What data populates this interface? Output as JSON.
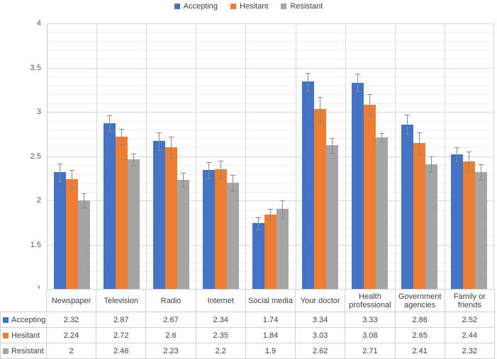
{
  "chart_data": {
    "type": "bar",
    "title": "",
    "xlabel": "",
    "ylabel": "",
    "ylim": [
      1,
      4
    ],
    "y_major_step": 0.5,
    "y_minor_step": 0.1,
    "y_tick_labels": [
      "4",
      "3.5",
      "3",
      "2.5",
      "2",
      "1.5",
      "1"
    ],
    "grid": true,
    "legend_position": "top",
    "has_data_table": true,
    "has_error_bars": true,
    "categories": [
      "Newspaper",
      "Television",
      "Radio",
      "Internet",
      "Social media",
      "Your doctor",
      "Health professional",
      "Government agencies",
      "Family or friends"
    ],
    "series": [
      {
        "name": "Accepting",
        "color": "#4472C4",
        "values": [
          2.32,
          2.87,
          2.67,
          2.34,
          1.74,
          3.34,
          3.33,
          2.86,
          2.52
        ],
        "errors": [
          0.1,
          0.09,
          0.1,
          0.09,
          0.07,
          0.1,
          0.1,
          0.11,
          0.08
        ]
      },
      {
        "name": "Hesitant",
        "color": "#ED7D31",
        "values": [
          2.24,
          2.72,
          2.6,
          2.35,
          1.84,
          3.03,
          3.08,
          2.65,
          2.44
        ],
        "errors": [
          0.1,
          0.09,
          0.12,
          0.1,
          0.06,
          0.14,
          0.12,
          0.12,
          0.11
        ]
      },
      {
        "name": "Resistant",
        "color": "#A5A5A5",
        "values": [
          2,
          2.46,
          2.23,
          2.2,
          1.9,
          2.62,
          2.71,
          2.41,
          2.32
        ],
        "errors": [
          0.08,
          0.07,
          0.08,
          0.09,
          0.1,
          0.08,
          0.05,
          0.09,
          0.09
        ]
      }
    ],
    "colors": {
      "error_bar": "#8A8A8A",
      "gridline_minor": "#EFEFEF",
      "gridline_major": "#D9D9D9",
      "category_separator": "#D9D9D9",
      "axis_line": "#C9C9C9",
      "table_border": "#D0D0D0",
      "axis_text": "#595959",
      "table_text": "#404040"
    }
  }
}
